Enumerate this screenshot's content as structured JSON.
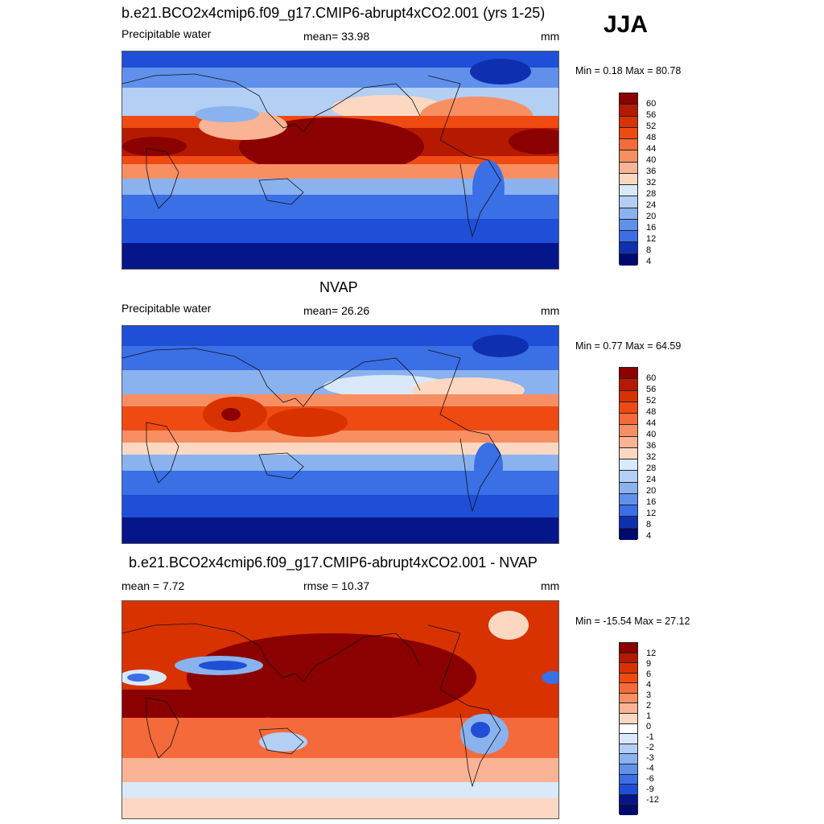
{
  "season": "JJA",
  "panels": [
    {
      "title": "b.e21.BCO2x4cmip6.f09_g17.CMIP6-abrupt4xCO2.001 (yrs 1-25)",
      "left": "Precipitable water",
      "center": "mean=  33.98",
      "units": "mm",
      "minmax": "Min =   0.18 Max =  80.78",
      "levels": [
        "60",
        "56",
        "52",
        "48",
        "44",
        "40",
        "36",
        "32",
        "28",
        "24",
        "20",
        "16",
        "12",
        "8",
        "4"
      ]
    },
    {
      "title": "NVAP",
      "left": "Precipitable water",
      "center": "mean=  26.26",
      "units": "mm",
      "minmax": "Min =   0.77 Max =  64.59",
      "levels": [
        "60",
        "56",
        "52",
        "48",
        "44",
        "40",
        "36",
        "32",
        "28",
        "24",
        "20",
        "16",
        "12",
        "8",
        "4"
      ]
    },
    {
      "title": "b.e21.BCO2x4cmip6.f09_g17.CMIP6-abrupt4xCO2.001 - NVAP",
      "left": "mean =   7.72",
      "center": "rmse =  10.37",
      "units": "mm",
      "minmax": "Min = -15.54 Max =  27.12",
      "levels": [
        "12",
        "9",
        "6",
        "4",
        "3",
        "2",
        "1",
        "0",
        "-1",
        "-2",
        "-3",
        "-4",
        "-6",
        "-9",
        "-12"
      ]
    }
  ],
  "colors": {
    "scale": [
      "#8b0000",
      "#b51a00",
      "#d83200",
      "#ef4a12",
      "#f46a3a",
      "#f78f63",
      "#fab394",
      "#fcd8c2",
      "#ffffff",
      "#d9e9fa",
      "#b3cff4",
      "#8ab2ee",
      "#6190ea",
      "#3a6fe6",
      "#1f4fd6",
      "#0e30b0",
      "#05168a",
      "#000a6e"
    ]
  }
}
